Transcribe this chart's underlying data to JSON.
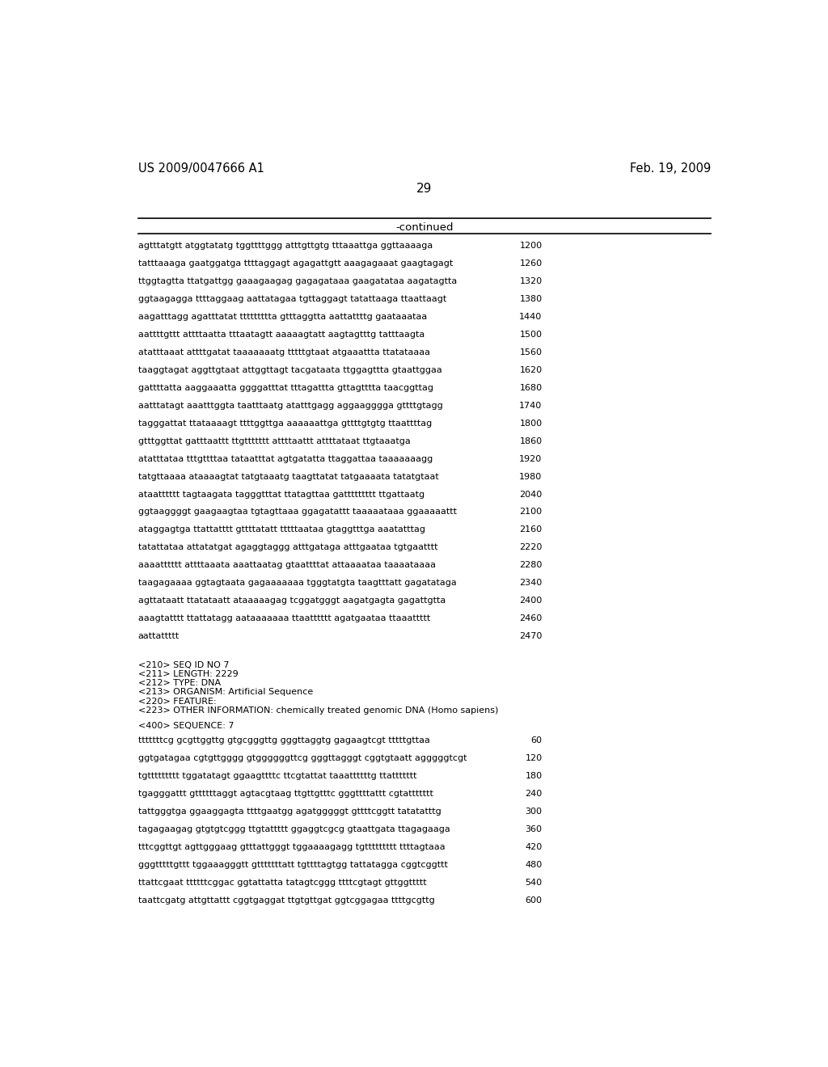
{
  "header_left": "US 2009/0047666 A1",
  "header_right": "Feb. 19, 2009",
  "page_number": "29",
  "continued_label": "-continued",
  "background_color": "#ffffff",
  "text_color": "#000000",
  "sequence_lines": [
    [
      "agtttatgtt atggtatatg tggttttggg atttgttgtg tttaaattga ggttaaaaga",
      "1200"
    ],
    [
      "tatttaaaga gaatggatga ttttaggagt agagattgtt aaagagaaat gaagtagagt",
      "1260"
    ],
    [
      "ttggtagtta ttatgattgg gaaagaagag gagagataaa gaagatataa aagatagtta",
      "1320"
    ],
    [
      "ggtaagagga ttttaggaag aattatagaa tgttaggagt tatattaaga ttaattaagt",
      "1380"
    ],
    [
      "aagatttagg agatttatat ttttttttta gtttaggtta aattattttg gaataaataa",
      "1440"
    ],
    [
      "aattttgttt attttaatta tttaatagtt aaaaagtatt aagtagtttg tatttaagta",
      "1500"
    ],
    [
      "atatttaaat attttgatat taaaaaaatg tttttgtaat atgaaattta ttatataaaa",
      "1560"
    ],
    [
      "taaggtagat aggttgtaat attggttagt tacgataata ttggagttta gtaattggaa",
      "1620"
    ],
    [
      "gattttatta aaggaaatta ggggatttat tttagattta gttagtttta taacggttag",
      "1680"
    ],
    [
      "aatttatagt aaatttggta taatttaatg atatttgagg aggaagggga gttttgtagg",
      "1740"
    ],
    [
      "tagggattat ttataaaagt ttttggttga aaaaaattga gttttgtgtg ttaattttag",
      "1800"
    ],
    [
      "gtttggttat gatttaattt ttgttttttt attttaattt attttataat ttgtaaatga",
      "1860"
    ],
    [
      "atatttataa tttgttttaa tataatttat agtgatatta ttaggattaa taaaaaaagg",
      "1920"
    ],
    [
      "tatgttaaaa ataaaagtat tatgtaaatg taagttatat tatgaaaata tatatgtaat",
      "1980"
    ],
    [
      "ataatttttt tagtaagata tagggtttat ttatagttaa gattttttttt ttgattaatg",
      "2040"
    ],
    [
      "ggtaaggggt gaagaagtaa tgtagttaaa ggagatattt taaaaataaa ggaaaaattt",
      "2100"
    ],
    [
      "ataggagtga ttattatttt gttttatatt tttttaataa gtaggtttga aaatatttag",
      "2160"
    ],
    [
      "tatattataa attatatgat agaggtaggg atttgataga atttgaataa tgtgaatttt",
      "2220"
    ],
    [
      "aaaatttttt attttaaata aaattaatag gtaattttat attaaaataa taaaataaaa",
      "2280"
    ],
    [
      "taagagaaaa ggtagtaata gagaaaaaaa tgggtatgta taagtttatt gagatataga",
      "2340"
    ],
    [
      "agttataatt ttatataatt ataaaaagag tcggatgggt aagatgagta gagattgtta",
      "2400"
    ],
    [
      "aaagtatttt ttattatagg aataaaaaaa ttaatttttt agatgaataa ttaaattttt",
      "2460"
    ],
    [
      "aattattttt",
      "2470"
    ]
  ],
  "metadata_lines": [
    "<210> SEQ ID NO 7",
    "<211> LENGTH: 2229",
    "<212> TYPE: DNA",
    "<213> ORGANISM: Artificial Sequence",
    "<220> FEATURE:",
    "<223> OTHER INFORMATION: chemically treated genomic DNA (Homo sapiens)"
  ],
  "sequence_header": "<400> SEQUENCE: 7",
  "sequence_data_lines": [
    [
      "tttttttcg gcgttggttg gtgcgggttg gggttaggtg gagaagtcgt tttttgttaa",
      "60"
    ],
    [
      "ggtgatagaa cgtgttgggg gtggggggttcg gggttagggt cggtgtaatt agggggtcgt",
      "120"
    ],
    [
      "tgttttttttt tggatatagt ggaagttttc ttcgtattat taaattttttg ttattttttt",
      "180"
    ],
    [
      "tgagggattt gttttttaggt agtacgtaag ttgttgtttc gggttttattt cgtattttttt",
      "240"
    ],
    [
      "tattgggtga ggaaggagta ttttgaatgg agatgggggt gttttcggtt tatatatttg",
      "300"
    ],
    [
      "tagagaagag gtgtgtcggg ttgtattttt ggaggtcgcg gtaattgata ttagagaaga",
      "360"
    ],
    [
      "tttcggttgt agttgggaag gtttattgggt tggaaaagagg tgttttttttt ttttagtaaa",
      "420"
    ],
    [
      "gggtttttgttt tggaaagggtt gtttttttatt tgttttagtgg tattatagga cggtcggttt",
      "480"
    ],
    [
      "ttattcgaat ttttttcggac ggtattatta tatagtcggg ttttcgtagt gttggttttt",
      "540"
    ],
    [
      "taattcgatg attgttattt cggtgaggat ttgtgttgat ggtcggagaa ttttgcgttg",
      "600"
    ]
  ]
}
